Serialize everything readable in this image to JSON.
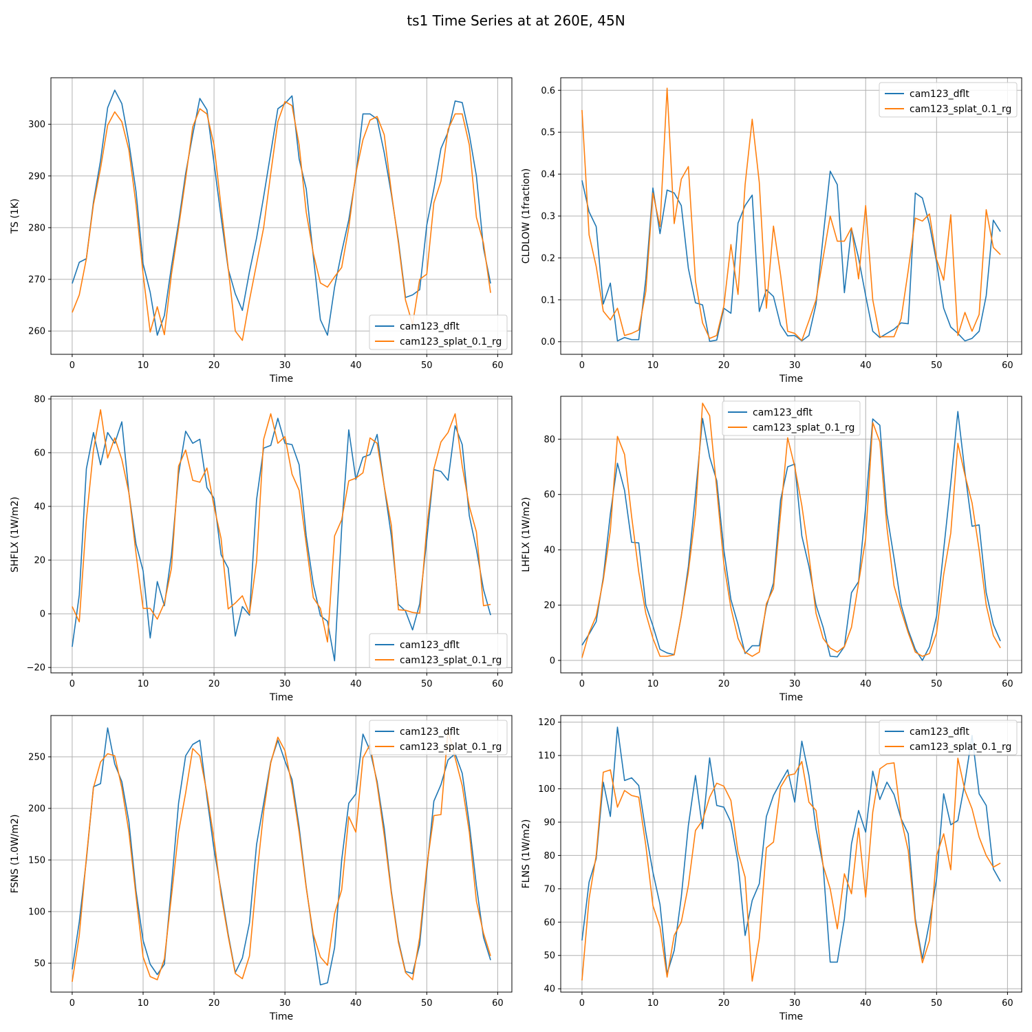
{
  "figure": {
    "title": "ts1 Time Series at at 260E, 45N"
  },
  "legend_labels": [
    "cam123_dflt",
    "cam123_splat_0.1_rg"
  ],
  "colors": {
    "cam123_dflt": "#1f77b4",
    "cam123_splat_0.1_rg": "#ff7f0e",
    "grid": "#b0b0b0"
  },
  "chart_data": [
    {
      "type": "line",
      "xlabel": "Time",
      "ylabel": "TS (1K)",
      "xlim": [
        -3,
        62
      ],
      "ylim": [
        255.5,
        309
      ],
      "xticks": [
        0,
        10,
        20,
        30,
        40,
        50,
        60
      ],
      "yticks": [
        260,
        270,
        280,
        290,
        300
      ],
      "grid": true,
      "legend_position": "lower-right",
      "series": [
        {
          "name": "cam123_dflt",
          "values": [
            269.2,
            273.3,
            274,
            285,
            293,
            303.2,
            306.6,
            304,
            296.5,
            287,
            273,
            267.5,
            259.2,
            263,
            272.5,
            281,
            290.5,
            298,
            305,
            302.8,
            292.5,
            282,
            272,
            267.2,
            264,
            271.5,
            278,
            286,
            294.5,
            303,
            304,
            305.5,
            293.3,
            287.5,
            274.5,
            262.2,
            259.2,
            268.5,
            275.3,
            281.5,
            290,
            302,
            302,
            301,
            294.5,
            286.5,
            277.5,
            266.5,
            267,
            268,
            280.5,
            287.5,
            295.3,
            298.5,
            304.5,
            304.2,
            298,
            290,
            276,
            269.2
          ]
        },
        {
          "name": "cam123_splat_0.1_rg",
          "values": [
            263.6,
            267,
            274,
            284.5,
            291.5,
            299.8,
            302.4,
            300.5,
            295,
            284.5,
            271,
            259.8,
            264.7,
            259.3,
            271,
            280,
            289.5,
            299.5,
            303,
            302,
            296,
            284,
            272.2,
            260,
            258.2,
            266,
            273,
            280,
            290.5,
            300.5,
            304.4,
            303.6,
            296,
            283,
            275,
            269.3,
            268.5,
            270.5,
            272.3,
            280,
            290.5,
            297,
            300.8,
            301.5,
            298,
            287,
            277,
            266,
            261.3,
            270,
            271,
            284.8,
            289,
            299,
            302,
            302,
            296,
            282,
            277,
            267.4
          ]
        }
      ]
    },
    {
      "type": "line",
      "xlabel": "Time",
      "ylabel": "CLDLOW (1fraction)",
      "xlim": [
        -3,
        62
      ],
      "ylim": [
        -0.03,
        0.63
      ],
      "xticks": [
        0,
        10,
        20,
        30,
        40,
        50,
        60
      ],
      "yticks": [
        0.0,
        0.1,
        0.2,
        0.3,
        0.4,
        0.5,
        0.6
      ],
      "grid": true,
      "legend_position": "upper-right",
      "series": [
        {
          "name": "cam123_dflt",
          "values": [
            0.385,
            0.31,
            0.275,
            0.09,
            0.14,
            0.002,
            0.01,
            0.005,
            0.005,
            0.15,
            0.367,
            0.258,
            0.362,
            0.355,
            0.325,
            0.175,
            0.093,
            0.088,
            0.001,
            0.004,
            0.08,
            0.068,
            0.283,
            0.325,
            0.35,
            0.072,
            0.124,
            0.108,
            0.04,
            0.014,
            0.015,
            0.002,
            0.015,
            0.09,
            0.25,
            0.407,
            0.375,
            0.117,
            0.27,
            0.2,
            0.11,
            0.025,
            0.01,
            0.02,
            0.03,
            0.045,
            0.043,
            0.355,
            0.343,
            0.28,
            0.19,
            0.08,
            0.035,
            0.02,
            0.002,
            0.008,
            0.025,
            0.11,
            0.29,
            0.263
          ]
        },
        {
          "name": "cam123_splat_0.1_rg",
          "values": [
            0.553,
            0.255,
            0.18,
            0.073,
            0.052,
            0.08,
            0.015,
            0.02,
            0.028,
            0.12,
            0.355,
            0.275,
            0.605,
            0.282,
            0.388,
            0.418,
            0.145,
            0.045,
            0.008,
            0.015,
            0.085,
            0.232,
            0.113,
            0.375,
            0.531,
            0.38,
            0.08,
            0.276,
            0.16,
            0.025,
            0.02,
            0.003,
            0.05,
            0.1,
            0.2,
            0.3,
            0.24,
            0.24,
            0.272,
            0.15,
            0.325,
            0.1,
            0.012,
            0.012,
            0.012,
            0.055,
            0.17,
            0.295,
            0.288,
            0.305,
            0.197,
            0.147,
            0.303,
            0.015,
            0.07,
            0.025,
            0.065,
            0.315,
            0.225,
            0.208
          ]
        }
      ]
    },
    {
      "type": "line",
      "xlabel": "Time",
      "ylabel": "SHFLX (1W/m2)",
      "xlim": [
        -3,
        62
      ],
      "ylim": [
        -22,
        81
      ],
      "xticks": [
        0,
        10,
        20,
        30,
        40,
        50,
        60
      ],
      "yticks": [
        -20,
        0,
        20,
        40,
        60,
        80
      ],
      "grid": true,
      "legend_position": "lower-right",
      "series": [
        {
          "name": "cam123_dflt",
          "values": [
            -12.3,
            7,
            54,
            67.5,
            55.5,
            67.5,
            63.5,
            71.5,
            45,
            26,
            16,
            -9,
            12,
            3,
            22,
            52,
            68,
            63.5,
            65,
            47,
            43,
            22,
            17,
            -8.3,
            2.7,
            -0.5,
            42.5,
            61.7,
            62.7,
            72.8,
            63.5,
            63,
            55.5,
            29,
            11,
            -0.7,
            -2.8,
            -17.5,
            32,
            68.5,
            50,
            58.3,
            59.3,
            66.8,
            47.5,
            29,
            3.5,
            1,
            -6,
            3.7,
            27.5,
            53.7,
            53,
            49.7,
            70,
            63,
            36.5,
            24,
            9,
            -0.5
          ]
        },
        {
          "name": "cam123_splat_0.1_rg",
          "values": [
            2.7,
            -3,
            35,
            61,
            76,
            58,
            65.5,
            57.5,
            45,
            22.5,
            2,
            2,
            -2,
            4,
            17,
            55,
            61,
            49.7,
            49,
            54.3,
            40,
            28,
            1.8,
            4,
            6.7,
            0,
            19.5,
            65,
            74.5,
            63.5,
            66,
            52,
            46,
            26,
            6,
            2,
            -10.5,
            29,
            35,
            49.5,
            50.5,
            52.5,
            65.5,
            63.5,
            47.5,
            33,
            1.5,
            1.3,
            0.5,
            0.2,
            32,
            54,
            64,
            67.5,
            74.5,
            55,
            40,
            30.5,
            3,
            3.5
          ]
        }
      ]
    },
    {
      "type": "line",
      "xlabel": "Time",
      "ylabel": "LHFLX (1W/m2)",
      "xlim": [
        -3,
        62
      ],
      "ylim": [
        -4.5,
        95.5
      ],
      "xticks": [
        0,
        10,
        20,
        30,
        40,
        50,
        60
      ],
      "yticks": [
        0,
        20,
        40,
        60,
        80
      ],
      "grid": true,
      "legend_position": "upper-center",
      "series": [
        {
          "name": "cam123_dflt",
          "values": [
            5.5,
            9.5,
            14,
            30,
            53,
            71.3,
            61.5,
            42.7,
            42.5,
            20,
            12.5,
            4,
            2.7,
            2.1,
            16,
            34,
            60,
            87.5,
            73.5,
            65,
            40,
            22,
            13,
            2.5,
            5.3,
            5.3,
            19.5,
            28,
            58,
            70,
            71,
            45,
            34,
            20,
            12,
            1.5,
            1.3,
            5,
            24.5,
            28.5,
            55.5,
            87.3,
            85,
            53,
            37,
            20,
            11,
            4,
            0,
            5,
            16,
            40,
            64,
            90,
            68,
            48.5,
            49,
            24.5,
            13,
            7
          ]
        },
        {
          "name": "cam123_splat_0.1_rg",
          "values": [
            1,
            10,
            16,
            29,
            47,
            81,
            74.5,
            52,
            32,
            17,
            8,
            1.5,
            1.5,
            2,
            16,
            32,
            53,
            93,
            88.5,
            62,
            35,
            19,
            8,
            3,
            1.5,
            3,
            20.5,
            26,
            53,
            80.5,
            70,
            56,
            38,
            17,
            8,
            4.5,
            3,
            5,
            12,
            28,
            44,
            86,
            79,
            48,
            27,
            18,
            10,
            3,
            1.5,
            2.5,
            10,
            31,
            46,
            78.5,
            67,
            57,
            40,
            20,
            9,
            4.5
          ]
        }
      ]
    },
    {
      "type": "line",
      "xlabel": "Time",
      "ylabel": "FSNS (1.0W/m2)",
      "xlim": [
        -3,
        62
      ],
      "ylim": [
        22,
        290
      ],
      "xticks": [
        0,
        10,
        20,
        30,
        40,
        50,
        60
      ],
      "yticks": [
        50,
        100,
        150,
        200,
        250
      ],
      "grid": true,
      "legend_position": "upper-right",
      "series": [
        {
          "name": "cam123_dflt",
          "values": [
            44,
            90,
            150,
            221,
            224,
            278,
            243,
            226,
            187,
            120,
            72,
            49,
            39,
            49,
            125,
            205,
            251,
            262,
            266,
            211,
            160,
            120,
            78,
            41,
            55,
            89,
            165,
            205,
            245,
            266,
            246,
            228,
            182,
            124,
            75,
            29,
            31,
            65,
            150,
            205,
            214,
            272,
            256,
            226,
            181,
            120,
            72,
            42,
            40,
            68,
            140,
            207,
            223,
            247,
            253,
            234,
            185,
            125,
            75,
            53
          ]
        },
        {
          "name": "cam123_splat_0.1_rg",
          "values": [
            32,
            77,
            152,
            220,
            245,
            253,
            251,
            220,
            177,
            115,
            56,
            37,
            34,
            54,
            115,
            177,
            215,
            258,
            251,
            215,
            170,
            116,
            76,
            40,
            35,
            57,
            132,
            197,
            244,
            269,
            256,
            222,
            177,
            123,
            78,
            56,
            48,
            98,
            121,
            192,
            177,
            249,
            262,
            223,
            174,
            118,
            70,
            41,
            34,
            75,
            144,
            193,
            194,
            276,
            249,
            222,
            177,
            110,
            79,
            57
          ]
        }
      ]
    },
    {
      "type": "line",
      "xlabel": "Time",
      "ylabel": "FLNS (1W/m2)",
      "xlim": [
        -3,
        62
      ],
      "ylim": [
        39,
        122
      ],
      "xticks": [
        0,
        10,
        20,
        30,
        40,
        50,
        60
      ],
      "yticks": [
        40,
        50,
        60,
        70,
        80,
        90,
        100,
        110,
        120
      ],
      "grid": true,
      "legend_position": "upper-right",
      "series": [
        {
          "name": "cam123_dflt",
          "values": [
            54.5,
            72,
            79,
            102,
            91.7,
            118.5,
            102.5,
            103.3,
            101,
            87,
            75,
            65.3,
            44.5,
            51.5,
            67.5,
            89,
            104,
            88,
            109.3,
            95,
            94.5,
            90,
            78,
            56,
            66.5,
            71.5,
            91.7,
            98,
            102,
            105.7,
            96,
            114.3,
            104,
            88,
            77,
            48,
            48,
            61,
            83.5,
            93.5,
            87,
            105.3,
            96.8,
            102,
            98.3,
            91,
            86.5,
            61,
            49,
            60,
            73,
            98.5,
            89.2,
            90.5,
            102,
            116,
            98.5,
            95,
            76,
            72.2
          ]
        },
        {
          "name": "cam123_splat_0.1_rg",
          "values": [
            42.5,
            67,
            80,
            105,
            105.7,
            94.5,
            99.5,
            98,
            97.5,
            83,
            65,
            58.5,
            43.5,
            56,
            60,
            71,
            87.5,
            90.5,
            97.5,
            101.7,
            100.8,
            96.5,
            81,
            73.5,
            42.3,
            55,
            82.3,
            84,
            100.5,
            104,
            104.5,
            108.2,
            96,
            93.5,
            77,
            70,
            58,
            74.5,
            68.5,
            88.2,
            67.5,
            93,
            106,
            107.5,
            107.8,
            91,
            81.5,
            60,
            47.8,
            54.5,
            80,
            86.5,
            75.7,
            109.2,
            99.5,
            94,
            85.5,
            80,
            76.5,
            77.7
          ]
        }
      ]
    }
  ]
}
